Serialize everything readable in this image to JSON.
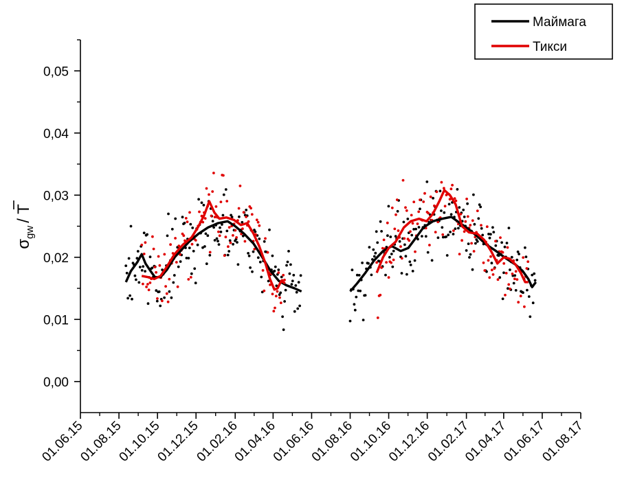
{
  "chart_data": {
    "type": "scatter",
    "xlabel": "",
    "ylabel": {
      "main": "σ",
      "sub": "gw",
      "rest": "/ T"
    },
    "xlim": [
      "2015-06-01",
      "2017-08-01"
    ],
    "ylim": [
      -0.005,
      0.055
    ],
    "x_ticks": [
      "01.06.15",
      "01.08.15",
      "01.10.15",
      "01.12.15",
      "01.02.16",
      "01.04.16",
      "01.06.16",
      "01.08.16",
      "01.10.16",
      "01.12.16",
      "01.02.17",
      "01.04.17",
      "01.06.17",
      "01.08.17"
    ],
    "y_ticks": [
      "0,00",
      "0,01",
      "0,02",
      "0,03",
      "0,04",
      "0,05"
    ],
    "y_tick_values": [
      0.0,
      0.01,
      0.02,
      0.03,
      0.04,
      0.05
    ],
    "legend_position": "top-right",
    "series": [
      {
        "name": "Маймага",
        "color": "#000000",
        "line": [
          [
            "2015-08-12",
            0.016
          ],
          [
            "2015-08-20",
            0.0178
          ],
          [
            "2015-08-30",
            0.0192
          ],
          [
            "2015-09-06",
            0.0205
          ],
          [
            "2015-09-12",
            0.019
          ],
          [
            "2015-09-20",
            0.0178
          ],
          [
            "2015-09-27",
            0.0168
          ],
          [
            "2015-10-06",
            0.0168
          ],
          [
            "2015-10-16",
            0.018
          ],
          [
            "2015-10-28",
            0.02
          ],
          [
            "2015-11-08",
            0.0212
          ],
          [
            "2015-11-20",
            0.0225
          ],
          [
            "2015-12-05",
            0.0238
          ],
          [
            "2015-12-20",
            0.0248
          ],
          [
            "2016-01-05",
            0.0255
          ],
          [
            "2016-01-20",
            0.0258
          ],
          [
            "2016-02-01",
            0.025
          ],
          [
            "2016-02-15",
            0.0238
          ],
          [
            "2016-03-01",
            0.0222
          ],
          [
            "2016-03-15",
            0.02
          ],
          [
            "2016-03-28",
            0.0178
          ],
          [
            "2016-04-10",
            0.0162
          ],
          [
            "2016-04-22",
            0.0155
          ],
          [
            "2016-05-05",
            0.015
          ],
          [
            "2016-05-16",
            0.0145
          ],
          null,
          [
            "2016-08-01",
            0.0145
          ],
          [
            "2016-08-12",
            0.0158
          ],
          [
            "2016-08-25",
            0.0175
          ],
          [
            "2016-09-08",
            0.0195
          ],
          [
            "2016-09-22",
            0.021
          ],
          [
            "2016-10-06",
            0.0218
          ],
          [
            "2016-10-20",
            0.021
          ],
          [
            "2016-11-01",
            0.0215
          ],
          [
            "2016-11-12",
            0.023
          ],
          [
            "2016-11-25",
            0.0248
          ],
          [
            "2016-12-10",
            0.0258
          ],
          [
            "2016-12-25",
            0.0262
          ],
          [
            "2017-01-08",
            0.0265
          ],
          [
            "2017-01-22",
            0.0255
          ],
          [
            "2017-02-05",
            0.0245
          ],
          [
            "2017-02-20",
            0.0232
          ],
          [
            "2017-03-05",
            0.022
          ],
          [
            "2017-03-20",
            0.021
          ],
          [
            "2017-04-05",
            0.0198
          ],
          [
            "2017-04-20",
            0.0188
          ],
          [
            "2017-05-01",
            0.0178
          ],
          [
            "2017-05-10",
            0.0165
          ],
          [
            "2017-05-16",
            0.0152
          ],
          [
            "2017-05-22",
            0.016
          ]
        ]
      },
      {
        "name": "Тикси",
        "color": "#e00000",
        "line": [
          [
            "2015-09-06",
            0.017
          ],
          [
            "2015-09-16",
            0.0168
          ],
          [
            "2015-09-26",
            0.0165
          ],
          [
            "2015-10-06",
            0.017
          ],
          [
            "2015-10-16",
            0.0185
          ],
          [
            "2015-10-28",
            0.0205
          ],
          [
            "2015-11-10",
            0.022
          ],
          [
            "2015-11-24",
            0.0232
          ],
          [
            "2015-12-05",
            0.025
          ],
          [
            "2015-12-14",
            0.0268
          ],
          [
            "2015-12-22",
            0.029
          ],
          [
            "2015-12-30",
            0.0272
          ],
          [
            "2016-01-07",
            0.0262
          ],
          [
            "2016-01-18",
            0.0264
          ],
          [
            "2016-01-30",
            0.026
          ],
          [
            "2016-02-10",
            0.0252
          ],
          [
            "2016-02-20",
            0.0255
          ],
          [
            "2016-03-01",
            0.0238
          ],
          [
            "2016-03-10",
            0.0218
          ],
          [
            "2016-03-20",
            0.019
          ],
          [
            "2016-03-27",
            0.0165
          ],
          [
            "2016-04-03",
            0.0148
          ],
          [
            "2016-04-08",
            0.015
          ],
          [
            "2016-04-14",
            0.0162
          ],
          [
            "2016-04-20",
            0.0158
          ],
          null,
          [
            "2016-09-12",
            0.0175
          ],
          [
            "2016-09-22",
            0.02
          ],
          [
            "2016-10-01",
            0.0215
          ],
          [
            "2016-10-12",
            0.0225
          ],
          [
            "2016-10-25",
            0.0248
          ],
          [
            "2016-11-05",
            0.0258
          ],
          [
            "2016-11-18",
            0.0262
          ],
          [
            "2016-11-30",
            0.0258
          ],
          [
            "2016-12-10",
            0.027
          ],
          [
            "2016-12-20",
            0.029
          ],
          [
            "2016-12-28",
            0.0308
          ],
          [
            "2017-01-06",
            0.03
          ],
          [
            "2017-01-15",
            0.0285
          ],
          [
            "2017-01-25",
            0.025
          ],
          [
            "2017-02-05",
            0.024
          ],
          [
            "2017-02-18",
            0.0238
          ],
          [
            "2017-03-01",
            0.0228
          ],
          [
            "2017-03-12",
            0.021
          ],
          [
            "2017-03-22",
            0.019
          ],
          [
            "2017-04-01",
            0.02
          ],
          [
            "2017-04-10",
            0.0198
          ],
          [
            "2017-04-20",
            0.0188
          ],
          [
            "2017-04-28",
            0.0175
          ],
          [
            "2017-05-05",
            0.016
          ],
          [
            "2017-05-10",
            0.016
          ]
        ]
      }
    ]
  }
}
